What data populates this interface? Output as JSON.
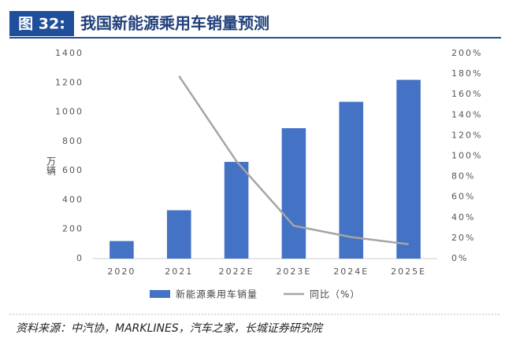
{
  "header": {
    "figure_label": "图 32:",
    "title": "我国新能源乘用车销量预测"
  },
  "chart_data": {
    "type": "bar-line",
    "y_label": "万辆",
    "categories": [
      "2020",
      "2021",
      "2022E",
      "2023E",
      "2024E",
      "2025E"
    ],
    "series": [
      {
        "name": "新能源乘用车销量",
        "type": "bar",
        "color": "#4472c4",
        "values": [
          120,
          330,
          660,
          890,
          1070,
          1220
        ]
      },
      {
        "name": "同比（%）",
        "type": "line",
        "axis": "y2",
        "color": "#a5a5a5",
        "values": [
          null,
          178,
          95,
          32,
          21,
          14
        ]
      }
    ],
    "ylim": [
      0,
      1400
    ],
    "yticks": [
      0,
      200,
      400,
      600,
      800,
      1000,
      1200,
      1400
    ],
    "y2lim": [
      0,
      200
    ],
    "y2ticks": [
      {
        "value": 0,
        "label": "0%"
      },
      {
        "value": 20,
        "label": "20%"
      },
      {
        "value": 40,
        "label": "40%"
      },
      {
        "value": 60,
        "label": "60%"
      },
      {
        "value": 80,
        "label": "80%"
      },
      {
        "value": 100,
        "label": "100%"
      },
      {
        "value": 120,
        "label": "120%"
      },
      {
        "value": 140,
        "label": "140%"
      },
      {
        "value": 160,
        "label": "160%"
      },
      {
        "value": 180,
        "label": "180%"
      },
      {
        "value": 200,
        "label": "200%"
      }
    ],
    "legend": "bottom",
    "grid": false
  },
  "source": "资料来源：中汽协，MARKLINES，汽车之家，长城证券研究院"
}
